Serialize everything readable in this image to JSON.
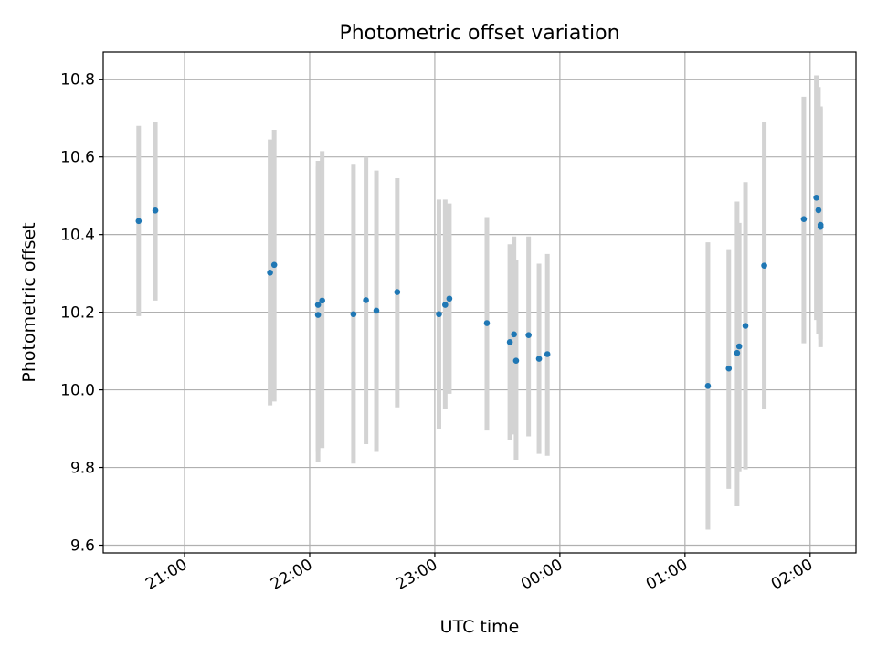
{
  "chart_data": {
    "type": "scatter",
    "title": "Photometric offset variation",
    "xlabel": "UTC time",
    "ylabel": "Photometric offset",
    "ylim": [
      9.58,
      10.87
    ],
    "xlim": [
      "20:21",
      "02:22"
    ],
    "grid": true,
    "colors": {
      "point": "#1f77b4",
      "errorbar": "#d3d3d3",
      "grid": "#b0b0b0"
    },
    "x_ticks": [
      "21:00",
      "22:00",
      "23:00",
      "00:00",
      "01:00",
      "02:00"
    ],
    "y_ticks": [
      9.6,
      9.8,
      10.0,
      10.2,
      10.4,
      10.6,
      10.8
    ],
    "points": [
      {
        "x": "20:38",
        "y": 10.435,
        "lo": 10.19,
        "hi": 10.68
      },
      {
        "x": "20:46",
        "y": 10.462,
        "lo": 10.23,
        "hi": 10.69
      },
      {
        "x": "21:41",
        "y": 10.302,
        "lo": 9.96,
        "hi": 10.645
      },
      {
        "x": "21:43",
        "y": 10.322,
        "lo": 9.97,
        "hi": 10.67
      },
      {
        "x": "22:04",
        "y": 10.219,
        "lo": 9.815,
        "hi": 10.575
      },
      {
        "x": "22:04",
        "y": 10.193,
        "lo": 9.84,
        "hi": 10.59
      },
      {
        "x": "22:06",
        "y": 10.23,
        "lo": 9.85,
        "hi": 10.615
      },
      {
        "x": "22:21",
        "y": 10.195,
        "lo": 9.81,
        "hi": 10.58
      },
      {
        "x": "22:27",
        "y": 10.231,
        "lo": 9.86,
        "hi": 10.6
      },
      {
        "x": "22:32",
        "y": 10.204,
        "lo": 9.84,
        "hi": 10.565
      },
      {
        "x": "22:42",
        "y": 10.252,
        "lo": 9.955,
        "hi": 10.545
      },
      {
        "x": "23:02",
        "y": 10.195,
        "lo": 9.9,
        "hi": 10.49
      },
      {
        "x": "23:05",
        "y": 10.219,
        "lo": 9.95,
        "hi": 10.49
      },
      {
        "x": "23:07",
        "y": 10.235,
        "lo": 9.99,
        "hi": 10.48
      },
      {
        "x": "23:25",
        "y": 10.172,
        "lo": 9.895,
        "hi": 10.445
      },
      {
        "x": "23:36",
        "y": 10.123,
        "lo": 9.87,
        "hi": 10.375
      },
      {
        "x": "23:38",
        "y": 10.143,
        "lo": 9.885,
        "hi": 10.395
      },
      {
        "x": "23:39",
        "y": 10.075,
        "lo": 9.82,
        "hi": 10.335
      },
      {
        "x": "23:45",
        "y": 10.141,
        "lo": 9.88,
        "hi": 10.395
      },
      {
        "x": "23:50",
        "y": 10.08,
        "lo": 9.835,
        "hi": 10.325
      },
      {
        "x": "23:54",
        "y": 10.092,
        "lo": 9.83,
        "hi": 10.35
      },
      {
        "x": "01:11",
        "y": 10.01,
        "lo": 9.64,
        "hi": 10.38
      },
      {
        "x": "01:21",
        "y": 10.055,
        "lo": 9.745,
        "hi": 10.36
      },
      {
        "x": "01:25",
        "y": 10.095,
        "lo": 9.7,
        "hi": 10.485
      },
      {
        "x": "01:26",
        "y": 10.112,
        "lo": 9.79,
        "hi": 10.43
      },
      {
        "x": "01:29",
        "y": 10.165,
        "lo": 9.795,
        "hi": 10.535
      },
      {
        "x": "01:38",
        "y": 10.32,
        "lo": 9.95,
        "hi": 10.69
      },
      {
        "x": "01:57",
        "y": 10.44,
        "lo": 10.12,
        "hi": 10.755
      },
      {
        "x": "02:03",
        "y": 10.495,
        "lo": 10.18,
        "hi": 10.81
      },
      {
        "x": "02:04",
        "y": 10.463,
        "lo": 10.145,
        "hi": 10.78
      },
      {
        "x": "02:05",
        "y": 10.42,
        "lo": 10.11,
        "hi": 10.73
      },
      {
        "x": "02:05",
        "y": 10.425,
        "lo": 10.13,
        "hi": 10.725
      }
    ]
  }
}
